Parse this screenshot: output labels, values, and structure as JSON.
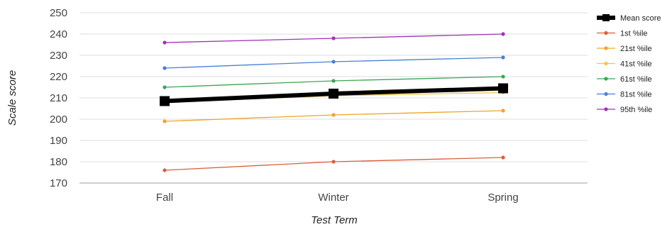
{
  "chart_data": {
    "type": "line",
    "xlabel": "Test Term",
    "ylabel": "Scale score",
    "categories": [
      "Fall",
      "Winter",
      "Spring"
    ],
    "ylim": [
      170,
      250
    ],
    "yticks": [
      170,
      180,
      190,
      200,
      210,
      220,
      230,
      240,
      250
    ],
    "grid": true,
    "legend_position": "right",
    "series": [
      {
        "name": "Mean score",
        "values": [
          208.5,
          212,
          214.5
        ],
        "color": "#000000"
      },
      {
        "name": "1st %ile",
        "values": [
          176,
          180,
          182
        ],
        "color": "#d9603b"
      },
      {
        "name": "21st %ile",
        "values": [
          199,
          202,
          204
        ],
        "color": "#f0a330"
      },
      {
        "name": "41st %ile",
        "values": [
          208,
          211,
          212.5
        ],
        "color": "#f4c542"
      },
      {
        "name": "61st %ile",
        "values": [
          215,
          218,
          220
        ],
        "color": "#3aa655"
      },
      {
        "name": "81st %ile",
        "values": [
          224,
          227,
          229
        ],
        "color": "#4a7fd6"
      },
      {
        "name": "95th %ile",
        "values": [
          236,
          238,
          240
        ],
        "color": "#a032b8"
      }
    ]
  }
}
